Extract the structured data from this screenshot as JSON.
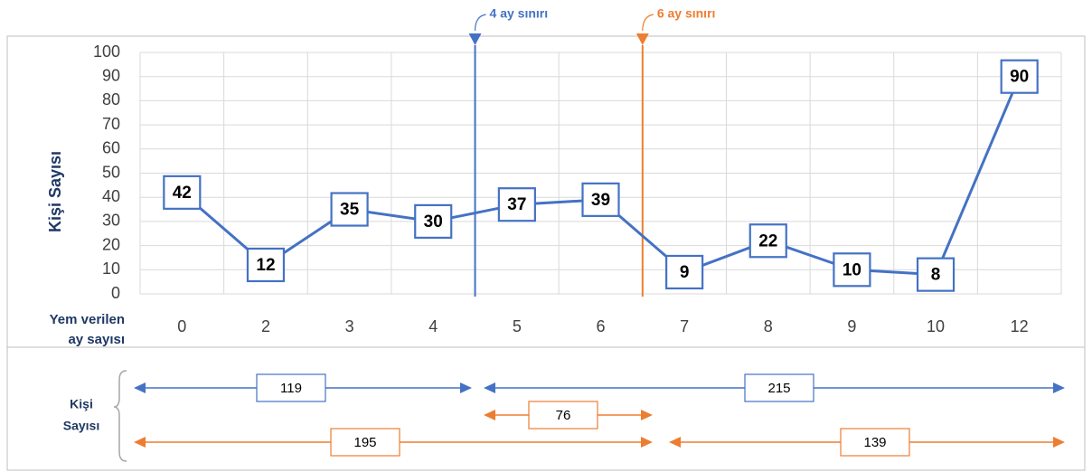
{
  "chart_data": {
    "type": "line",
    "y_label": "Kişi Sayısı",
    "x_label_lines": [
      "Yem verilen",
      "ay sayısı"
    ],
    "categories": [
      "0",
      "2",
      "3",
      "4",
      "5",
      "6",
      "7",
      "8",
      "9",
      "10",
      "12"
    ],
    "series": [
      {
        "name": "Kişi Sayısı",
        "color": "#4472c4",
        "values": [
          42,
          12,
          35,
          30,
          37,
          39,
          9,
          22,
          10,
          8,
          90
        ]
      }
    ],
    "ylim": [
      0,
      100
    ],
    "yticks": [
      0,
      10,
      20,
      30,
      40,
      50,
      60,
      70,
      80,
      90,
      100
    ],
    "grid": true,
    "markers": [
      {
        "label": "4 ay sınırı",
        "color": "#4472c4"
      },
      {
        "label": "6 ay sınırı",
        "color": "#ed7d31"
      }
    ],
    "totals_label_lines": [
      "Kişi",
      "Sayısı"
    ],
    "totals": [
      {
        "value": 119,
        "color": "#4472c4"
      },
      {
        "value": 215,
        "color": "#4472c4"
      },
      {
        "value": 76,
        "color": "#ed7d31"
      },
      {
        "value": 195,
        "color": "#ed7d31"
      },
      {
        "value": 139,
        "color": "#ed7d31"
      }
    ]
  }
}
